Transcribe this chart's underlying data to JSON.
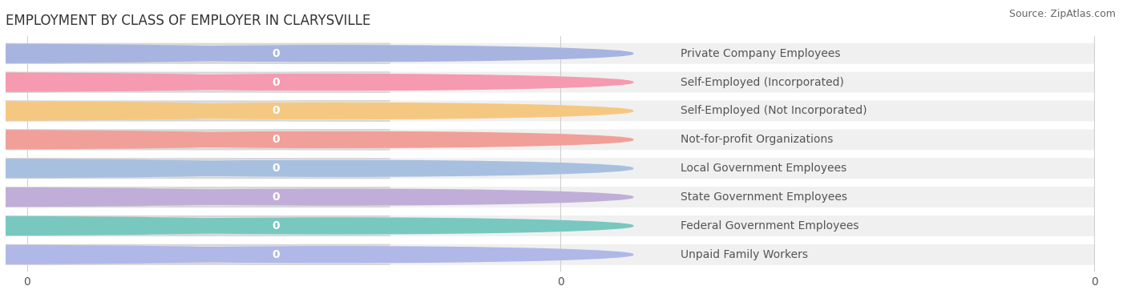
{
  "title": "EMPLOYMENT BY CLASS OF EMPLOYER IN CLARYSVILLE",
  "source": "Source: ZipAtlas.com",
  "categories": [
    "Private Company Employees",
    "Self-Employed (Incorporated)",
    "Self-Employed (Not Incorporated)",
    "Not-for-profit Organizations",
    "Local Government Employees",
    "State Government Employees",
    "Federal Government Employees",
    "Unpaid Family Workers"
  ],
  "values": [
    0,
    0,
    0,
    0,
    0,
    0,
    0,
    0
  ],
  "bar_colors": [
    "#a8b4e0",
    "#f59ab0",
    "#f5c882",
    "#f0a098",
    "#a8c0e0",
    "#c0aed8",
    "#78c8c0",
    "#b0b8e8"
  ],
  "row_bg_colors": [
    "#eceef8",
    "#fce8f0",
    "#fef4e4",
    "#fce8e4",
    "#e4eef8",
    "#eceaf8",
    "#e0f4f4",
    "#eceaf8"
  ],
  "background_color": "#ffffff",
  "title_fontsize": 12,
  "label_fontsize": 10,
  "tick_fontsize": 10,
  "source_fontsize": 9
}
